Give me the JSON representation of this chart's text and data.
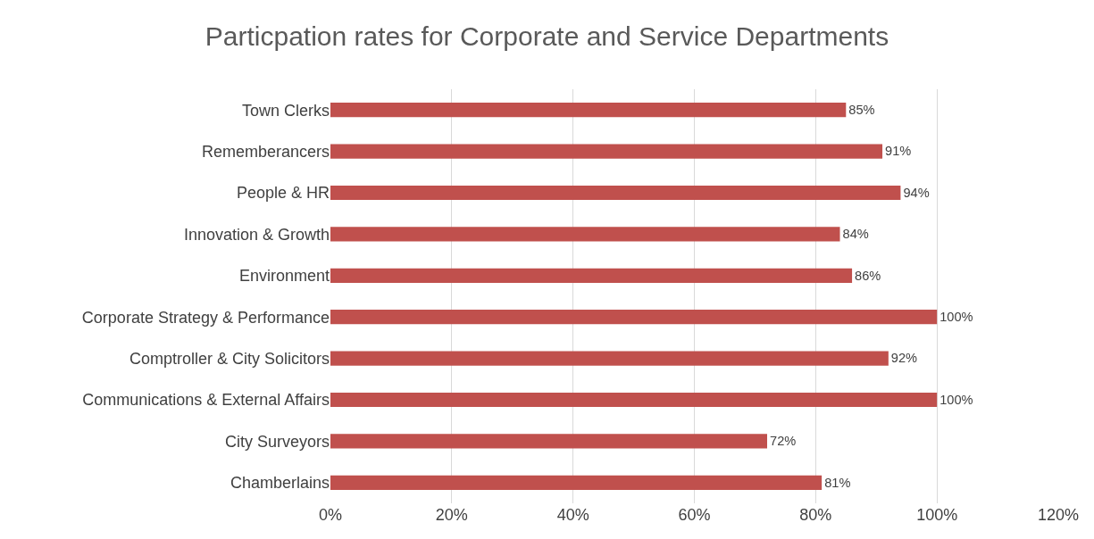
{
  "chart_data": {
    "type": "bar",
    "orientation": "horizontal",
    "title": "Particpation rates for Corporate and Service Departments",
    "categories": [
      "Town Clerks",
      "Rememberancers",
      "People & HR",
      "Innovation & Growth",
      "Environment",
      "Corporate Strategy & Performance",
      "Comptroller & City Solicitors",
      "Communications & External Affairs",
      "City Surveyors",
      "Chamberlains"
    ],
    "values": [
      85,
      91,
      94,
      84,
      86,
      100,
      92,
      100,
      72,
      81
    ],
    "value_labels": [
      "85%",
      "91%",
      "94%",
      "84%",
      "86%",
      "100%",
      "92%",
      "100%",
      "72%",
      "81%"
    ],
    "color": "#c0504d",
    "xlim": [
      0,
      120
    ],
    "xticks": [
      {
        "value": 0,
        "label": "0%"
      },
      {
        "value": 20,
        "label": "20%"
      },
      {
        "value": 40,
        "label": "40%"
      },
      {
        "value": 60,
        "label": "60%"
      },
      {
        "value": 80,
        "label": "80%"
      },
      {
        "value": 100,
        "label": "100%"
      },
      {
        "value": 120,
        "label": "120%"
      }
    ],
    "grid": "x",
    "legend": false
  }
}
